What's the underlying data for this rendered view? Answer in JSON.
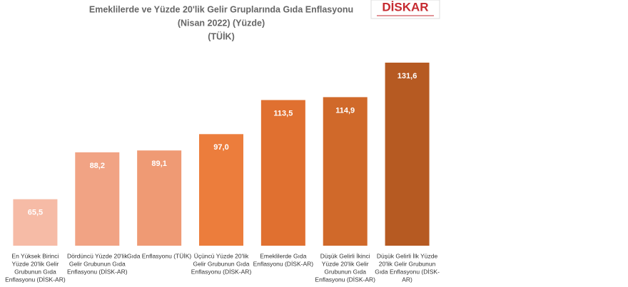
{
  "chart_data": {
    "type": "bar",
    "title": [
      "Emeklilerde ve Yüzde 20'lik Gelir Gruplarında Gıda Enflasyonu",
      "(Nisan 2022) (Yüzde)",
      "(TÜİK)"
    ],
    "logo": "DİSKAR",
    "categories": [
      [
        "En Yüksek Birinci",
        "Yüzde 20'lik Gelir",
        "Grubunun Gıda",
        "Enflasyonu (DİSK-AR)"
      ],
      [
        "Dördüncü Yüzde 20'lik",
        "Gelir Grubunun Gıda",
        "Enflasyonu (DİSK-AR)"
      ],
      [
        "Gıda Enflasyonu (TÜİK)"
      ],
      [
        "Üçüncü Yüzde 20'lik",
        "Gelir Grubunun Gıda",
        "Enflasyonu (DİSK-AR)"
      ],
      [
        "Emeklilerde Gıda",
        "Enflasyonu (DİSK-AR)"
      ],
      [
        "Düşük Gelirli İkinci",
        "Yüzde 20'lik Gelir",
        "Grubunun Gıda",
        "Enflasyonu (DİSK-AR)"
      ],
      [
        "Düşük Gelirli İlk Yüzde",
        "20'lik Gelir Grubunun",
        "Gıda Enflasyonu (DİSK-",
        "AR)"
      ]
    ],
    "values": [
      65.5,
      88.2,
      89.1,
      97.0,
      113.5,
      114.9,
      131.6
    ],
    "value_labels": [
      "65,5",
      "88,2",
      "89,1",
      "97,0",
      "113,5",
      "114,9",
      "131,6"
    ],
    "colors": [
      "#f6bba6",
      "#f1a384",
      "#ef9a74",
      "#ec7d3c",
      "#e07030",
      "#d0692a",
      "#b65a22"
    ],
    "ylim": [
      43,
      134
    ]
  }
}
